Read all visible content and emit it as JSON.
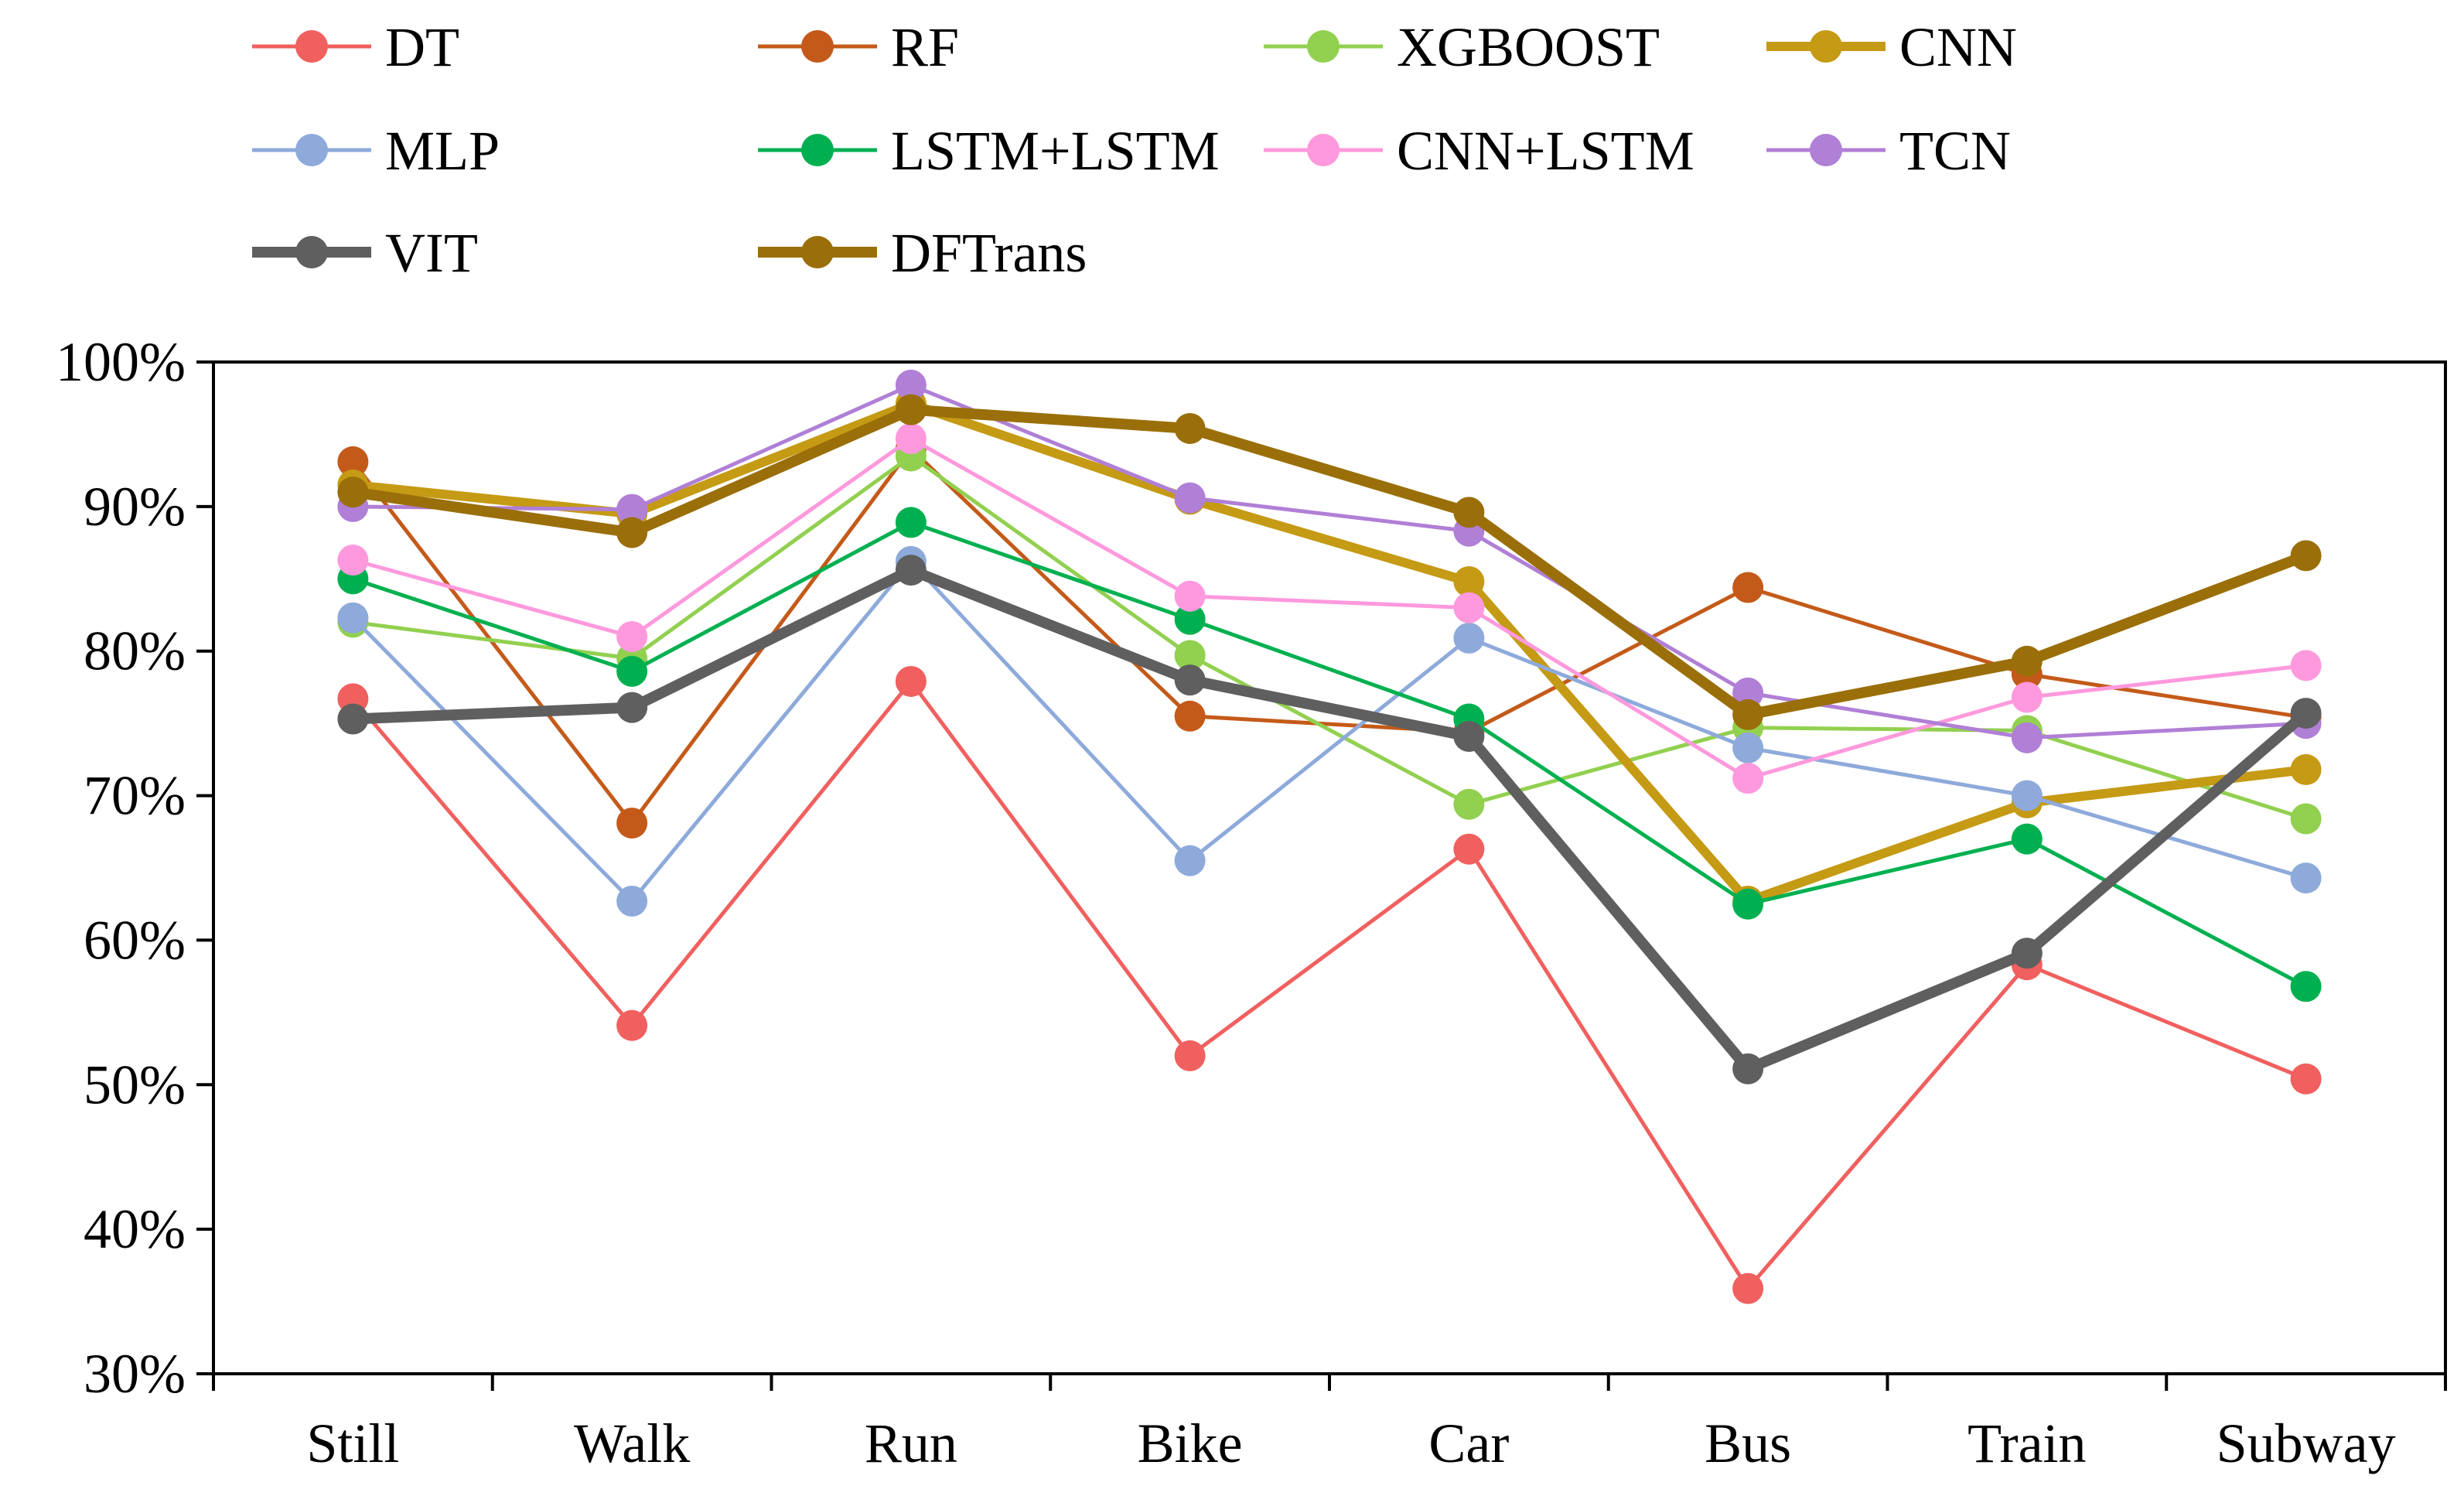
{
  "chart_data": {
    "type": "line",
    "title": "",
    "xlabel": "",
    "ylabel": "",
    "categories": [
      "Still",
      "Walk",
      "Run",
      "Bike",
      "Car",
      "Bus",
      "Train",
      "Subway"
    ],
    "ylim": [
      30,
      100
    ],
    "yticks": [
      30,
      40,
      50,
      60,
      70,
      80,
      90,
      100
    ],
    "ytick_labels": [
      "30%",
      "40%",
      "50%",
      "60%",
      "70%",
      "80%",
      "90%",
      "100%"
    ],
    "grid": false,
    "legend_position": "top",
    "series": [
      {
        "name": "DT",
        "color": "#f0605f",
        "values": [
          76.7,
          54.1,
          77.9,
          52.0,
          66.3,
          35.9,
          58.3,
          50.4
        ]
      },
      {
        "name": "RF",
        "color": "#c45a19",
        "values": [
          93.1,
          68.1,
          94.0,
          75.5,
          74.4,
          84.4,
          78.4,
          75.4
        ]
      },
      {
        "name": "XGBOOST",
        "color": "#92d050",
        "values": [
          82.0,
          79.5,
          93.5,
          79.7,
          69.4,
          74.7,
          74.5,
          68.4
        ]
      },
      {
        "name": "CNN",
        "color": "#c59a14",
        "values": [
          91.5,
          89.5,
          97.1,
          90.5,
          84.8,
          62.7,
          69.5,
          71.8
        ]
      },
      {
        "name": "MLP",
        "color": "#8eaadb",
        "values": [
          82.3,
          62.7,
          86.2,
          65.5,
          80.9,
          73.3,
          70.0,
          64.3
        ]
      },
      {
        "name": "LSTM+LSTM",
        "color": "#00b050",
        "values": [
          85.0,
          78.6,
          88.9,
          82.2,
          75.3,
          62.5,
          67.0,
          56.8
        ]
      },
      {
        "name": "CNN+LSTM",
        "color": "#ff99dd",
        "values": [
          86.3,
          81.0,
          94.7,
          83.8,
          83.0,
          71.2,
          76.8,
          79.0
        ]
      },
      {
        "name": "TCN",
        "color": "#b07fd6",
        "values": [
          90.0,
          89.8,
          98.4,
          90.6,
          88.3,
          77.1,
          74.0,
          75.0
        ]
      },
      {
        "name": "VIT",
        "color": "#5f5f5f",
        "values": [
          75.3,
          76.1,
          85.6,
          78.0,
          74.1,
          51.1,
          59.1,
          75.7
        ]
      },
      {
        "name": "DFTrans",
        "color": "#9a6f09",
        "values": [
          91.0,
          88.2,
          96.7,
          95.4,
          89.6,
          75.6,
          79.3,
          86.6
        ]
      }
    ]
  }
}
